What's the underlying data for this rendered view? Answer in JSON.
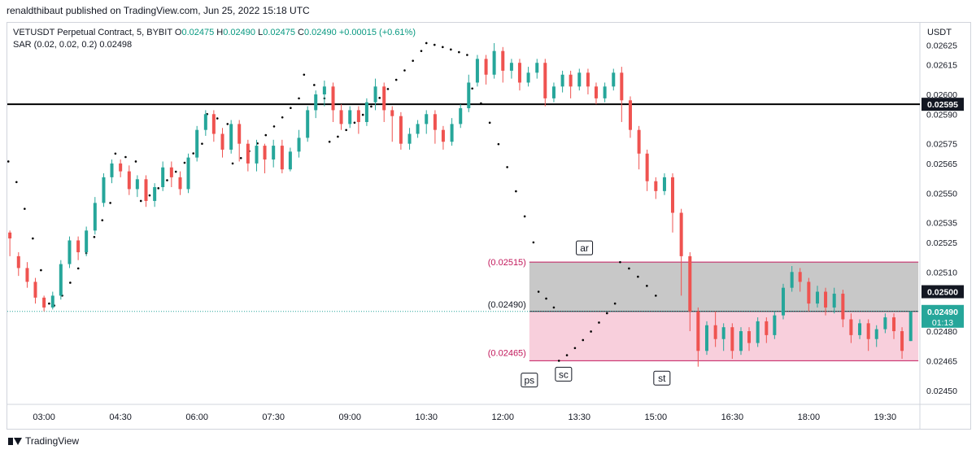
{
  "header": {
    "publish_line": "renaldthibaut published on TradingView.com, Jun 25, 2022 15:18 UTC"
  },
  "legend": {
    "symbol": "VETUSDT Perpetual Contract, 5, BYBIT",
    "o_label": "O",
    "o_value": "0.02475",
    "h_label": "H",
    "h_value": "0.02490",
    "l_label": "L",
    "l_value": "0.02475",
    "c_label": "C",
    "c_value": "0.02490",
    "change": "+0.00015 (+0.61%)",
    "indicator": "SAR (0.02, 0.02, 0.2)",
    "indicator_value": "0.02498"
  },
  "footer": {
    "brand": "TradingView"
  },
  "chart_data": {
    "type": "candlestick",
    "currency": "USDT",
    "y_ticks": [
      "0.02625",
      "0.02615",
      "0.02600",
      "0.02590",
      "0.02575",
      "0.02565",
      "0.02550",
      "0.02535",
      "0.02525",
      "0.02510",
      "0.02480",
      "0.02465",
      "0.02450"
    ],
    "y_tick_values": [
      0.02625,
      0.02615,
      0.026,
      0.0259,
      0.02575,
      0.02565,
      0.0255,
      0.02535,
      0.02525,
      0.0251,
      0.0248,
      0.02465,
      0.0245
    ],
    "x_ticks": [
      "03:00",
      "04:30",
      "06:00",
      "07:30",
      "09:00",
      "10:30",
      "12:00",
      "13:30",
      "15:00",
      "16:30",
      "18:00",
      "19:30"
    ],
    "x_tick_hours": [
      3,
      4.5,
      6,
      7.5,
      9,
      10.5,
      12,
      13.5,
      15,
      16.5,
      18,
      19.5
    ],
    "ylim": [
      0.024429,
      0.026363
    ],
    "xlim_hours": [
      2.28,
      20.18
    ],
    "colors": {
      "up": "#26a69a",
      "down": "#ef5350",
      "sar": "#000000",
      "hline": "#000000",
      "box_gray": "#c8c8c8",
      "box_pink": "#f8cfdc",
      "box_border": "#c2185b",
      "price_badge": "#26a69a",
      "label_pink": "#c2185b"
    },
    "horizontal_line": {
      "price": 0.02595,
      "label": "0.02595"
    },
    "range_box": {
      "from_hour": 12.52,
      "to_hour": 20.15,
      "top": 0.02515,
      "mid": 0.0249,
      "bottom": 0.02465,
      "top_label": "(0.02515)",
      "mid_label": "(0.02490)",
      "bottom_label": "(0.02465)"
    },
    "price_levels": [
      {
        "price": 0.025,
        "label": "0.02500",
        "style": "dark"
      }
    ],
    "current_price": {
      "price": 0.0249,
      "label": "0.02490",
      "countdown": "01:13"
    },
    "annotations": [
      {
        "text": "ar",
        "hour": 13.6,
        "price": 0.02522
      },
      {
        "text": "ps",
        "hour": 12.52,
        "price": 0.02455
      },
      {
        "text": "sc",
        "hour": 13.19,
        "price": 0.02458
      },
      {
        "text": "st",
        "hour": 15.12,
        "price": 0.02456
      }
    ],
    "candles": [
      [
        2.33,
        0.0253,
        0.02527,
        0.02518,
        0.02531
      ],
      [
        2.5,
        0.02518,
        0.02512,
        0.02508,
        0.0252
      ],
      [
        2.67,
        0.02512,
        0.02505,
        0.02502,
        0.02515
      ],
      [
        2.83,
        0.02505,
        0.02497,
        0.02494,
        0.02507
      ],
      [
        3.0,
        0.02497,
        0.02492,
        0.0249,
        0.02498
      ],
      [
        3.17,
        0.02492,
        0.02498,
        0.02491,
        0.025
      ],
      [
        3.33,
        0.02498,
        0.02514,
        0.02496,
        0.02516
      ],
      [
        3.5,
        0.02514,
        0.02526,
        0.02512,
        0.02528
      ],
      [
        3.67,
        0.02526,
        0.0252,
        0.02516,
        0.02528
      ],
      [
        3.83,
        0.0252,
        0.02531,
        0.02518,
        0.02533
      ],
      [
        4.0,
        0.02531,
        0.02545,
        0.02529,
        0.02548
      ],
      [
        4.17,
        0.02545,
        0.02558,
        0.02543,
        0.0256
      ],
      [
        4.33,
        0.02558,
        0.02565,
        0.02555,
        0.02567
      ],
      [
        4.5,
        0.02565,
        0.02561,
        0.02558,
        0.02567
      ],
      [
        4.67,
        0.02561,
        0.02552,
        0.02549,
        0.02564
      ],
      [
        4.83,
        0.02552,
        0.02557,
        0.02548,
        0.02559
      ],
      [
        5.0,
        0.02557,
        0.02546,
        0.02543,
        0.02559
      ],
      [
        5.17,
        0.02546,
        0.02553,
        0.02543,
        0.02555
      ],
      [
        5.33,
        0.02553,
        0.02563,
        0.02551,
        0.02566
      ],
      [
        5.5,
        0.02563,
        0.02558,
        0.02553,
        0.02566
      ],
      [
        5.67,
        0.02558,
        0.02552,
        0.02549,
        0.02561
      ],
      [
        5.83,
        0.02552,
        0.02568,
        0.0255,
        0.0257
      ],
      [
        6.0,
        0.02568,
        0.02582,
        0.02566,
        0.02584
      ],
      [
        6.17,
        0.02582,
        0.0259,
        0.02579,
        0.02592
      ],
      [
        6.33,
        0.0259,
        0.0258,
        0.02576,
        0.02592
      ],
      [
        6.5,
        0.0258,
        0.02572,
        0.02568,
        0.02583
      ],
      [
        6.67,
        0.02572,
        0.02585,
        0.0257,
        0.02587
      ],
      [
        6.83,
        0.02585,
        0.02575,
        0.02566,
        0.02587
      ],
      [
        7.0,
        0.02575,
        0.02565,
        0.02561,
        0.02577
      ],
      [
        7.17,
        0.02565,
        0.02574,
        0.02561,
        0.02577
      ],
      [
        7.33,
        0.02574,
        0.02567,
        0.0256,
        0.02575
      ],
      [
        7.5,
        0.02567,
        0.02574,
        0.02563,
        0.02577
      ],
      [
        7.67,
        0.02574,
        0.02562,
        0.0256,
        0.02577
      ],
      [
        7.83,
        0.02562,
        0.02571,
        0.02561,
        0.02573
      ],
      [
        8.0,
        0.02571,
        0.02578,
        0.02568,
        0.02582
      ],
      [
        8.17,
        0.02578,
        0.02592,
        0.02576,
        0.02594
      ],
      [
        8.33,
        0.02592,
        0.026,
        0.02588,
        0.02602
      ],
      [
        8.5,
        0.026,
        0.02604,
        0.02594,
        0.02607
      ],
      [
        8.67,
        0.02604,
        0.02592,
        0.02586,
        0.02606
      ],
      [
        8.83,
        0.02592,
        0.02585,
        0.02582,
        0.02595
      ],
      [
        9.0,
        0.02585,
        0.02592,
        0.02583,
        0.02594
      ],
      [
        9.17,
        0.02592,
        0.02586,
        0.0258,
        0.02594
      ],
      [
        9.33,
        0.02586,
        0.02596,
        0.02584,
        0.02598
      ],
      [
        9.5,
        0.02596,
        0.02604,
        0.02592,
        0.02608
      ],
      [
        9.67,
        0.02604,
        0.02592,
        0.02586,
        0.02606
      ],
      [
        9.83,
        0.02592,
        0.02589,
        0.02576,
        0.02594
      ],
      [
        10.0,
        0.02589,
        0.02575,
        0.02572,
        0.02591
      ],
      [
        10.17,
        0.02575,
        0.0258,
        0.02572,
        0.02583
      ],
      [
        10.33,
        0.0258,
        0.02585,
        0.02578,
        0.02587
      ],
      [
        10.5,
        0.02585,
        0.0259,
        0.0258,
        0.02592
      ],
      [
        10.67,
        0.0259,
        0.02582,
        0.02575,
        0.02592
      ],
      [
        10.83,
        0.02582,
        0.02576,
        0.02572,
        0.02584
      ],
      [
        11.0,
        0.02576,
        0.02585,
        0.02574,
        0.02588
      ],
      [
        11.17,
        0.02585,
        0.02593,
        0.02583,
        0.02595
      ],
      [
        11.33,
        0.02593,
        0.02606,
        0.02591,
        0.0261
      ],
      [
        11.5,
        0.02606,
        0.02618,
        0.02604,
        0.0262
      ],
      [
        11.67,
        0.02618,
        0.0261,
        0.02605,
        0.0262
      ],
      [
        11.83,
        0.0261,
        0.02622,
        0.02608,
        0.02626
      ],
      [
        12.0,
        0.02622,
        0.02612,
        0.02606,
        0.02624
      ],
      [
        12.17,
        0.02612,
        0.02616,
        0.02608,
        0.02618
      ],
      [
        12.33,
        0.02616,
        0.02606,
        0.02602,
        0.02618
      ],
      [
        12.5,
        0.02606,
        0.02611,
        0.02604,
        0.02614
      ],
      [
        12.67,
        0.02611,
        0.02616,
        0.02608,
        0.02618
      ],
      [
        12.83,
        0.02616,
        0.02598,
        0.02594,
        0.02618
      ],
      [
        13.0,
        0.02598,
        0.02604,
        0.02596,
        0.02606
      ],
      [
        13.17,
        0.02604,
        0.0261,
        0.02601,
        0.02612
      ],
      [
        13.33,
        0.0261,
        0.02604,
        0.02598,
        0.02612
      ],
      [
        13.5,
        0.02604,
        0.02611,
        0.02602,
        0.02613
      ],
      [
        13.67,
        0.02611,
        0.02604,
        0.026,
        0.02613
      ],
      [
        13.83,
        0.02604,
        0.02598,
        0.02595,
        0.02606
      ],
      [
        14.0,
        0.02598,
        0.02604,
        0.02596,
        0.02606
      ],
      [
        14.17,
        0.02604,
        0.02611,
        0.02602,
        0.02613
      ],
      [
        14.33,
        0.02611,
        0.02597,
        0.02586,
        0.02614
      ],
      [
        14.5,
        0.02597,
        0.02582,
        0.02578,
        0.02599
      ],
      [
        14.67,
        0.02582,
        0.0257,
        0.02562,
        0.02584
      ],
      [
        14.83,
        0.0257,
        0.02556,
        0.02551,
        0.02572
      ],
      [
        15.0,
        0.02556,
        0.02551,
        0.02547,
        0.02558
      ],
      [
        15.17,
        0.02551,
        0.02558,
        0.02549,
        0.0256
      ],
      [
        15.33,
        0.02558,
        0.0254,
        0.0253,
        0.0256
      ],
      [
        15.5,
        0.0254,
        0.02518,
        0.02498,
        0.02542
      ],
      [
        15.67,
        0.02518,
        0.0249,
        0.0248,
        0.0252
      ],
      [
        15.83,
        0.0249,
        0.0247,
        0.02462,
        0.02492
      ],
      [
        16.0,
        0.0247,
        0.02483,
        0.02468,
        0.02485
      ],
      [
        16.17,
        0.02483,
        0.02476,
        0.02472,
        0.0249
      ],
      [
        16.33,
        0.02476,
        0.02482,
        0.0247,
        0.02484
      ],
      [
        16.5,
        0.02482,
        0.0247,
        0.02466,
        0.02484
      ],
      [
        16.67,
        0.0247,
        0.0248,
        0.02468,
        0.02482
      ],
      [
        16.83,
        0.0248,
        0.02474,
        0.0247,
        0.02482
      ],
      [
        17.0,
        0.02474,
        0.02485,
        0.02472,
        0.02487
      ],
      [
        17.17,
        0.02485,
        0.02478,
        0.02474,
        0.02487
      ],
      [
        17.33,
        0.02478,
        0.02488,
        0.02476,
        0.0249
      ],
      [
        17.5,
        0.02488,
        0.02502,
        0.02486,
        0.02504
      ],
      [
        17.67,
        0.02502,
        0.0251,
        0.025,
        0.02513
      ],
      [
        17.83,
        0.0251,
        0.02505,
        0.025,
        0.02512
      ],
      [
        18.0,
        0.02505,
        0.02494,
        0.0249,
        0.02507
      ],
      [
        18.17,
        0.02494,
        0.025,
        0.02492,
        0.02503
      ],
      [
        18.33,
        0.025,
        0.02492,
        0.02488,
        0.02502
      ],
      [
        18.5,
        0.02492,
        0.02499,
        0.02489,
        0.02502
      ],
      [
        18.67,
        0.02499,
        0.02486,
        0.02482,
        0.02501
      ],
      [
        18.83,
        0.02486,
        0.02478,
        0.02474,
        0.02489
      ],
      [
        19.0,
        0.02478,
        0.02484,
        0.02476,
        0.02486
      ],
      [
        19.17,
        0.02484,
        0.02476,
        0.0247,
        0.02486
      ],
      [
        19.33,
        0.02476,
        0.02481,
        0.02472,
        0.02483
      ],
      [
        19.5,
        0.02481,
        0.02487,
        0.02479,
        0.02489
      ],
      [
        19.67,
        0.02487,
        0.0248,
        0.02476,
        0.02489
      ],
      [
        19.83,
        0.0248,
        0.0247,
        0.02466,
        0.02482
      ],
      [
        20.0,
        0.02475,
        0.0249,
        0.02475,
        0.0249
      ]
    ],
    "sar_segments": [
      {
        "from": 2.3,
        "to": 3.1,
        "start": 0.02566,
        "end": 0.02494
      },
      {
        "from": 3.2,
        "to": 4.3,
        "start": 0.02493,
        "end": 0.02545
      },
      {
        "from": 4.4,
        "to": 4.8,
        "start": 0.0257,
        "end": 0.02566
      },
      {
        "from": 4.9,
        "to": 6.1,
        "start": 0.02546,
        "end": 0.02575
      },
      {
        "from": 6.2,
        "to": 6.6,
        "start": 0.0259,
        "end": 0.02585
      },
      {
        "from": 6.7,
        "to": 8.0,
        "start": 0.02565,
        "end": 0.02598
      },
      {
        "from": 8.1,
        "to": 8.5,
        "start": 0.0261,
        "end": 0.02598
      },
      {
        "from": 8.6,
        "to": 10.4,
        "start": 0.02576,
        "end": 0.02622
      },
      {
        "from": 10.5,
        "to": 11.3,
        "start": 0.02626,
        "end": 0.0262
      },
      {
        "from": 11.4,
        "to": 12.6,
        "start": 0.02603,
        "end": 0.02525
      },
      {
        "from": 12.7,
        "to": 13.0,
        "start": 0.025,
        "end": 0.02492
      },
      {
        "from": 13.1,
        "to": 14.2,
        "start": 0.02465,
        "end": 0.02494
      },
      {
        "from": 14.3,
        "to": 15.0,
        "start": 0.02515,
        "end": 0.02498
      }
    ]
  }
}
